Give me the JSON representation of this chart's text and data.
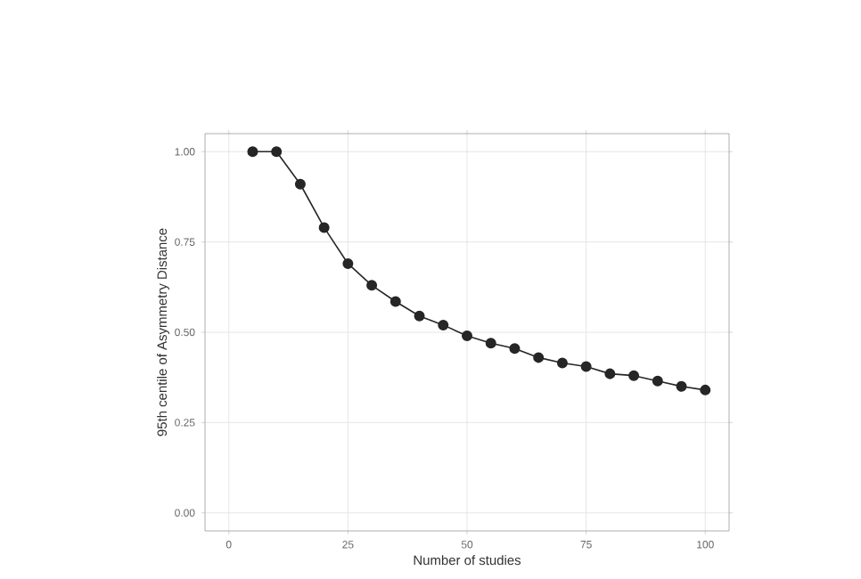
{
  "chart_data": {
    "type": "line",
    "xlabel": "Number of studies",
    "ylabel": "95th centile of Asymmetry Distance",
    "x": [
      5,
      10,
      15,
      20,
      25,
      30,
      35,
      40,
      45,
      50,
      55,
      60,
      65,
      70,
      75,
      80,
      85,
      90,
      95,
      100
    ],
    "series": [
      {
        "color": "#262626",
        "values": [
          1.0,
          1.0,
          0.91,
          0.79,
          0.69,
          0.63,
          0.585,
          0.545,
          0.52,
          0.49,
          0.47,
          0.455,
          0.43,
          0.415,
          0.405,
          0.385,
          0.38,
          0.365,
          0.35,
          0.34
        ]
      }
    ],
    "xlim": [
      -5,
      105
    ],
    "ylim": [
      -0.05,
      1.05
    ],
    "xticks": [
      0,
      25,
      50,
      75,
      100
    ],
    "yticks": [
      {
        "value": 0,
        "label": "0.00"
      },
      {
        "value": 0.25,
        "label": "0.25"
      },
      {
        "value": 0.5,
        "label": "0.50"
      },
      {
        "value": 0.75,
        "label": "0.75"
      },
      {
        "value": 1,
        "label": "1.00"
      }
    ],
    "grid": true,
    "marker": "circle",
    "line_style": "solid"
  }
}
